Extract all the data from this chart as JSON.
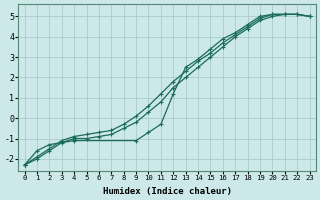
{
  "xlabel": "Humidex (Indice chaleur)",
  "xlim": [
    -0.5,
    23.5
  ],
  "ylim": [
    -2.6,
    5.6
  ],
  "xticks": [
    0,
    1,
    2,
    3,
    4,
    5,
    6,
    7,
    8,
    9,
    10,
    11,
    12,
    13,
    14,
    15,
    16,
    17,
    18,
    19,
    20,
    21,
    22,
    23
  ],
  "yticks": [
    -2,
    -1,
    0,
    1,
    2,
    3,
    4,
    5
  ],
  "bg_color": "#cce8e8",
  "grid_color": "#aacccc",
  "line_color": "#1a6b5a",
  "line1_x": [
    0,
    1,
    2,
    3,
    4,
    5,
    6,
    7,
    8,
    9,
    10,
    11,
    12,
    13,
    14,
    15,
    16,
    17,
    18,
    19,
    20,
    21,
    22,
    23
  ],
  "line1_y": [
    -2.3,
    -2.0,
    -1.6,
    -1.2,
    -1.0,
    -1.0,
    -0.9,
    -0.8,
    -0.5,
    -0.2,
    0.3,
    0.8,
    1.5,
    2.0,
    2.5,
    3.0,
    3.5,
    4.0,
    4.4,
    4.8,
    5.0,
    5.1,
    5.1,
    5.0
  ],
  "line2_x": [
    0,
    1,
    2,
    3,
    4,
    5,
    6,
    7,
    8,
    9,
    10,
    11,
    12,
    13,
    14,
    15,
    16,
    17,
    18,
    19,
    20,
    21,
    22,
    23
  ],
  "line2_y": [
    -2.3,
    -1.9,
    -1.5,
    -1.1,
    -0.9,
    -0.8,
    -0.7,
    -0.6,
    -0.3,
    0.1,
    0.6,
    1.2,
    1.8,
    2.3,
    2.8,
    3.2,
    3.7,
    4.1,
    4.5,
    4.9,
    5.1,
    5.1,
    5.1,
    5.0
  ],
  "line3_x": [
    0,
    1,
    2,
    4,
    9,
    10,
    11,
    12,
    13,
    14,
    15,
    16,
    17,
    18,
    19,
    20,
    21,
    22,
    23
  ],
  "line3_y": [
    -2.3,
    -1.6,
    -1.3,
    -1.1,
    -1.1,
    -0.7,
    -0.3,
    1.2,
    2.5,
    2.9,
    3.4,
    3.9,
    4.2,
    4.6,
    5.0,
    5.1,
    5.1,
    5.1,
    5.0
  ]
}
